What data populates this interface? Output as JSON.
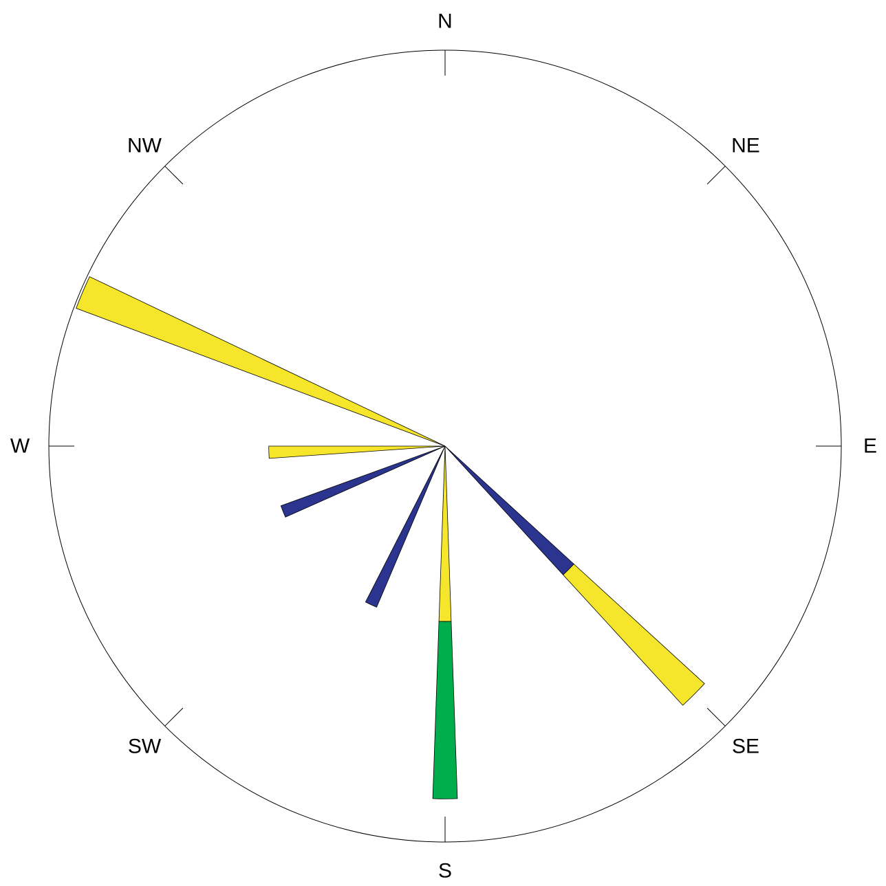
{
  "chart_data": {
    "type": "rose",
    "title": "",
    "directions": [
      {
        "label": "N",
        "angle": 0
      },
      {
        "label": "NE",
        "angle": 45
      },
      {
        "label": "E",
        "angle": 90
      },
      {
        "label": "SE",
        "angle": 135
      },
      {
        "label": "S",
        "angle": 180
      },
      {
        "label": "SW",
        "angle": 225
      },
      {
        "label": "W",
        "angle": 270
      },
      {
        "label": "NW",
        "angle": 315
      }
    ],
    "r_max": 1.0,
    "colors": {
      "blue": "#2b3590",
      "yellow": "#f6e62b",
      "green": "#00ad4d"
    },
    "petals": [
      {
        "direction": 293,
        "width": 5,
        "segments": [
          {
            "color": "yellow",
            "from": 0,
            "to": 0.994
          }
        ]
      },
      {
        "direction": 268,
        "width": 4,
        "segments": [
          {
            "color": "yellow",
            "from": 0,
            "to": 0.445
          }
        ]
      },
      {
        "direction": 248,
        "width": 4,
        "segments": [
          {
            "color": "blue",
            "from": 0,
            "to": 0.441
          }
        ]
      },
      {
        "direction": 205,
        "width": 4,
        "segments": [
          {
            "color": "blue",
            "from": 0,
            "to": 0.442
          }
        ]
      },
      {
        "direction": 180,
        "width": 4,
        "segments": [
          {
            "color": "yellow",
            "from": 0,
            "to": 0.443
          },
          {
            "color": "green",
            "from": 0.443,
            "to": 0.891
          }
        ]
      },
      {
        "direction": 135,
        "width": 5,
        "segments": [
          {
            "color": "blue",
            "from": 0,
            "to": 0.441
          },
          {
            "color": "yellow",
            "from": 0.441,
            "to": 0.888
          }
        ]
      }
    ]
  }
}
